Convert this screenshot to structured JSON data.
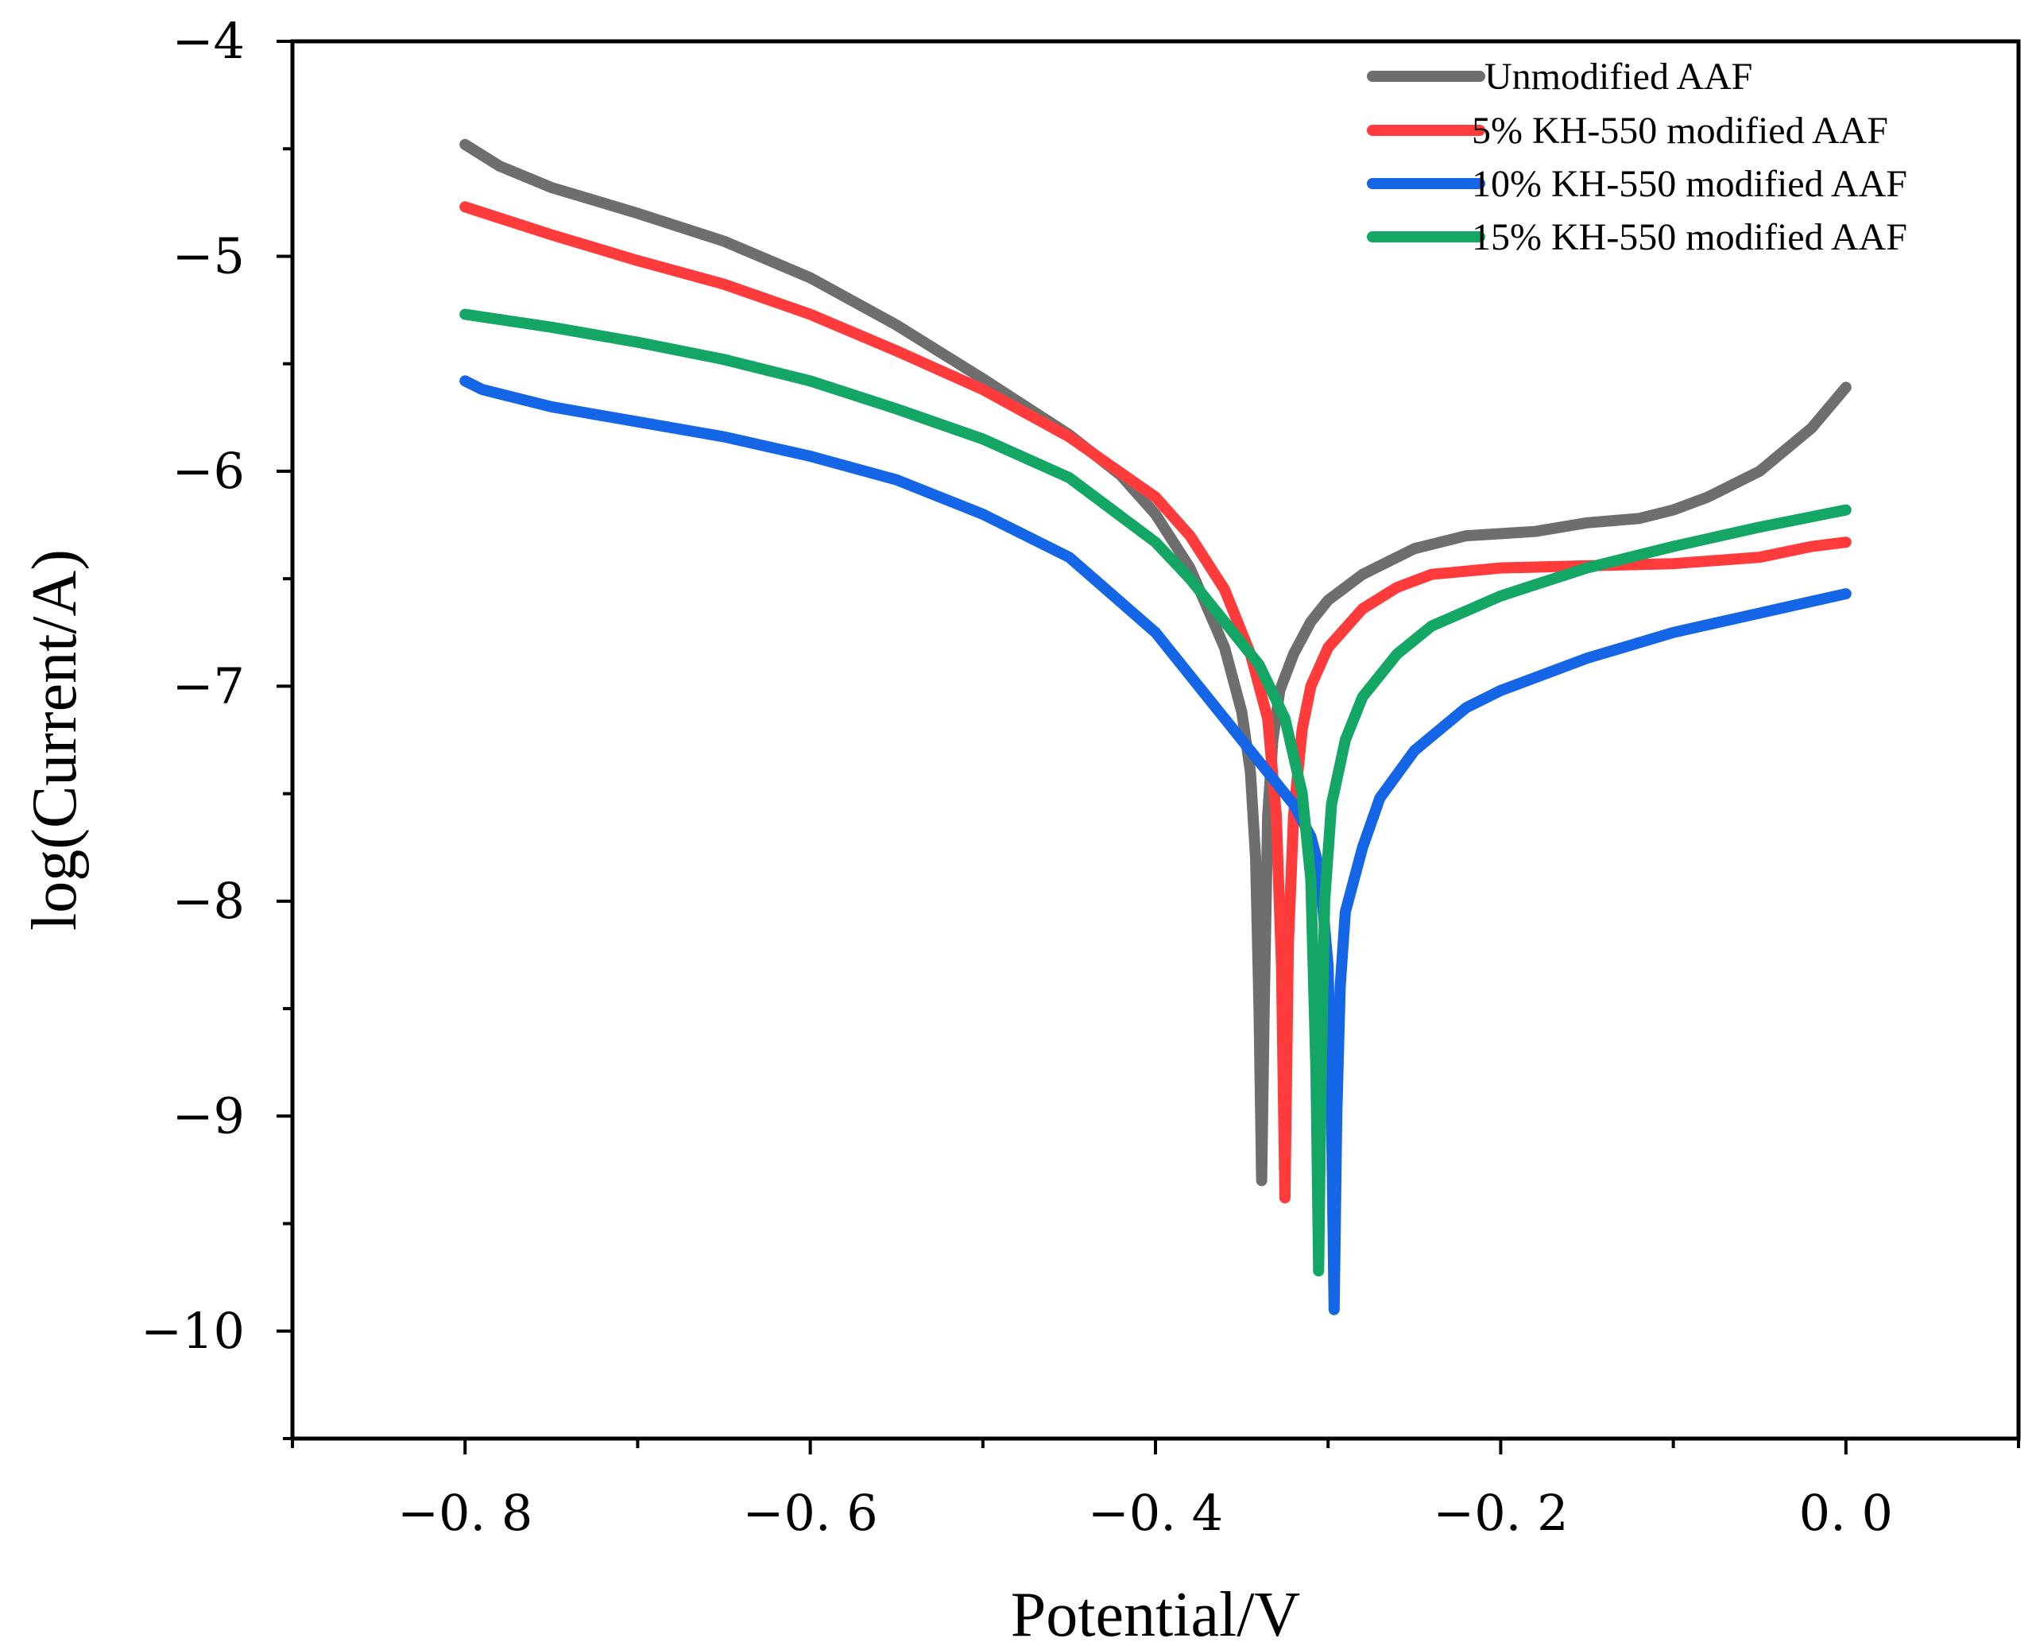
{
  "chart_data": {
    "type": "line",
    "title": "",
    "xlabel": "Potential/V",
    "ylabel": "log(Current/A)",
    "xlim": [
      -0.9,
      0.1
    ],
    "ylim": [
      -10.5,
      -4
    ],
    "xticks": [
      -0.8,
      -0.6,
      -0.4,
      -0.2,
      0.0
    ],
    "xtick_labels": [
      "−0. 8",
      "−0. 6",
      "−0. 4",
      "−0. 2",
      "0. 0"
    ],
    "yticks": [
      -4,
      -5,
      -6,
      -7,
      -8,
      -9,
      -10
    ],
    "ytick_labels": [
      "−4",
      "−5",
      "−6",
      "−7",
      "−8",
      "−9",
      "−10"
    ],
    "legend_position": "top-right",
    "series": [
      {
        "name": "Unmodified AAF",
        "color": "#6e6e6e",
        "points": [
          [
            -0.8,
            -4.48
          ],
          [
            -0.78,
            -4.58
          ],
          [
            -0.75,
            -4.68
          ],
          [
            -0.7,
            -4.8
          ],
          [
            -0.65,
            -4.93
          ],
          [
            -0.6,
            -5.1
          ],
          [
            -0.55,
            -5.32
          ],
          [
            -0.5,
            -5.57
          ],
          [
            -0.45,
            -5.83
          ],
          [
            -0.42,
            -6.02
          ],
          [
            -0.4,
            -6.2
          ],
          [
            -0.38,
            -6.45
          ],
          [
            -0.36,
            -6.82
          ],
          [
            -0.35,
            -7.12
          ],
          [
            -0.345,
            -7.4
          ],
          [
            -0.342,
            -7.8
          ],
          [
            -0.34,
            -8.5
          ],
          [
            -0.3385,
            -9.3
          ],
          [
            -0.337,
            -8.5
          ],
          [
            -0.335,
            -7.6
          ],
          [
            -0.332,
            -7.25
          ],
          [
            -0.328,
            -7.02
          ],
          [
            -0.32,
            -6.85
          ],
          [
            -0.31,
            -6.7
          ],
          [
            -0.3,
            -6.6
          ],
          [
            -0.28,
            -6.48
          ],
          [
            -0.25,
            -6.36
          ],
          [
            -0.22,
            -6.3
          ],
          [
            -0.18,
            -6.28
          ],
          [
            -0.15,
            -6.24
          ],
          [
            -0.12,
            -6.22
          ],
          [
            -0.1,
            -6.18
          ],
          [
            -0.08,
            -6.12
          ],
          [
            -0.05,
            -6.0
          ],
          [
            -0.02,
            -5.8
          ],
          [
            0.0,
            -5.61
          ]
        ]
      },
      {
        "name": "5%  KH-550 modified AAF",
        "color": "#ff3b3b",
        "points": [
          [
            -0.8,
            -4.77
          ],
          [
            -0.75,
            -4.9
          ],
          [
            -0.7,
            -5.02
          ],
          [
            -0.65,
            -5.13
          ],
          [
            -0.6,
            -5.27
          ],
          [
            -0.55,
            -5.44
          ],
          [
            -0.5,
            -5.62
          ],
          [
            -0.45,
            -5.84
          ],
          [
            -0.4,
            -6.12
          ],
          [
            -0.38,
            -6.3
          ],
          [
            -0.36,
            -6.55
          ],
          [
            -0.345,
            -6.85
          ],
          [
            -0.335,
            -7.15
          ],
          [
            -0.33,
            -7.6
          ],
          [
            -0.327,
            -8.3
          ],
          [
            -0.325,
            -9.38
          ],
          [
            -0.323,
            -8.2
          ],
          [
            -0.32,
            -7.6
          ],
          [
            -0.315,
            -7.2
          ],
          [
            -0.31,
            -7.0
          ],
          [
            -0.3,
            -6.82
          ],
          [
            -0.28,
            -6.64
          ],
          [
            -0.26,
            -6.54
          ],
          [
            -0.24,
            -6.48
          ],
          [
            -0.2,
            -6.45
          ],
          [
            -0.15,
            -6.44
          ],
          [
            -0.1,
            -6.43
          ],
          [
            -0.05,
            -6.4
          ],
          [
            -0.02,
            -6.35
          ],
          [
            0.0,
            -6.33
          ]
        ]
      },
      {
        "name": "10% KH-550 modified AAF",
        "color": "#1466e6",
        "points": [
          [
            -0.8,
            -5.58
          ],
          [
            -0.79,
            -5.62
          ],
          [
            -0.75,
            -5.7
          ],
          [
            -0.7,
            -5.77
          ],
          [
            -0.65,
            -5.84
          ],
          [
            -0.6,
            -5.93
          ],
          [
            -0.55,
            -6.04
          ],
          [
            -0.5,
            -6.2
          ],
          [
            -0.45,
            -6.4
          ],
          [
            -0.4,
            -6.75
          ],
          [
            -0.38,
            -6.95
          ],
          [
            -0.36,
            -7.15
          ],
          [
            -0.34,
            -7.35
          ],
          [
            -0.32,
            -7.55
          ],
          [
            -0.31,
            -7.7
          ],
          [
            -0.305,
            -7.85
          ],
          [
            -0.3,
            -8.3
          ],
          [
            -0.298,
            -9.0
          ],
          [
            -0.2965,
            -9.9
          ],
          [
            -0.295,
            -9.0
          ],
          [
            -0.293,
            -8.4
          ],
          [
            -0.29,
            -8.05
          ],
          [
            -0.28,
            -7.75
          ],
          [
            -0.27,
            -7.52
          ],
          [
            -0.25,
            -7.3
          ],
          [
            -0.22,
            -7.1
          ],
          [
            -0.2,
            -7.02
          ],
          [
            -0.15,
            -6.87
          ],
          [
            -0.1,
            -6.75
          ],
          [
            -0.05,
            -6.66
          ],
          [
            0.0,
            -6.57
          ]
        ]
      },
      {
        "name": "15% KH-550 modified AAF",
        "color": "#14a664",
        "points": [
          [
            -0.8,
            -5.27
          ],
          [
            -0.75,
            -5.33
          ],
          [
            -0.7,
            -5.4
          ],
          [
            -0.65,
            -5.48
          ],
          [
            -0.6,
            -5.58
          ],
          [
            -0.55,
            -5.71
          ],
          [
            -0.5,
            -5.85
          ],
          [
            -0.45,
            -6.03
          ],
          [
            -0.4,
            -6.33
          ],
          [
            -0.38,
            -6.5
          ],
          [
            -0.36,
            -6.7
          ],
          [
            -0.34,
            -6.9
          ],
          [
            -0.325,
            -7.15
          ],
          [
            -0.315,
            -7.5
          ],
          [
            -0.31,
            -7.9
          ],
          [
            -0.307,
            -8.8
          ],
          [
            -0.3055,
            -9.72
          ],
          [
            -0.304,
            -8.8
          ],
          [
            -0.302,
            -8.0
          ],
          [
            -0.298,
            -7.55
          ],
          [
            -0.29,
            -7.25
          ],
          [
            -0.28,
            -7.05
          ],
          [
            -0.26,
            -6.85
          ],
          [
            -0.24,
            -6.72
          ],
          [
            -0.2,
            -6.58
          ],
          [
            -0.15,
            -6.45
          ],
          [
            -0.1,
            -6.35
          ],
          [
            -0.05,
            -6.26
          ],
          [
            0.0,
            -6.18
          ]
        ]
      }
    ]
  }
}
